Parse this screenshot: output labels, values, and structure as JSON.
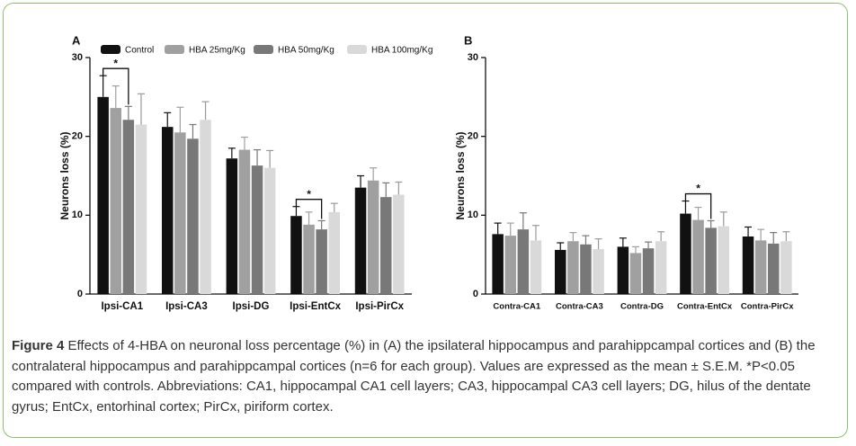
{
  "chart_data": [
    {
      "type": "bar",
      "panel": "A",
      "y_label": "Neurons loss (%)",
      "categories": [
        "Ipsi-CA1",
        "Ipsi-CA3",
        "Ipsi-DG",
        "Ipsi-EntCx",
        "Ipsi-PirCx"
      ],
      "series": [
        {
          "name": "Control",
          "color": "#111111",
          "values": [
            25.0,
            21.2,
            17.2,
            9.9,
            13.5
          ],
          "errors": [
            2.7,
            1.8,
            1.3,
            1.2,
            1.5
          ]
        },
        {
          "name": "HBA 25mg/Kg",
          "color": "#a0a0a0",
          "values": [
            23.6,
            20.5,
            18.3,
            8.8,
            14.4
          ],
          "errors": [
            2.8,
            3.2,
            1.6,
            1.6,
            1.6
          ]
        },
        {
          "name": "HBA 50mg/Kg",
          "color": "#787878",
          "values": [
            22.1,
            19.7,
            16.3,
            8.2,
            12.3
          ],
          "errors": [
            1.7,
            1.8,
            2.0,
            1.1,
            1.8
          ]
        },
        {
          "name": "HBA 100mg/Kg",
          "color": "#d9d9d9",
          "values": [
            21.5,
            22.1,
            16.0,
            10.4,
            12.6
          ],
          "errors": [
            3.9,
            2.3,
            2.2,
            1.1,
            1.6
          ]
        }
      ],
      "ylim": [
        0,
        30
      ],
      "yticks": [
        0,
        10,
        20,
        30
      ],
      "legend": "top",
      "annotations": [
        {
          "text": "*",
          "category": 0,
          "series": [
            0,
            2
          ]
        },
        {
          "text": "*",
          "category": 3,
          "series": [
            0,
            2
          ]
        }
      ]
    },
    {
      "type": "bar",
      "panel": "B",
      "y_label": "Neurons loss (%)",
      "categories": [
        "Contra-CA1",
        "Contra-CA3",
        "Contra-DG",
        "Contra-EntCx",
        "Contra-PirCx"
      ],
      "series": [
        {
          "color": "#111111",
          "values": [
            7.6,
            5.6,
            6.0,
            10.2,
            7.3
          ],
          "errors": [
            1.4,
            0.9,
            1.1,
            1.6,
            1.2
          ]
        },
        {
          "color": "#a0a0a0",
          "values": [
            7.4,
            6.7,
            5.2,
            9.4,
            6.8
          ],
          "errors": [
            1.6,
            1.1,
            0.8,
            1.6,
            1.4
          ]
        },
        {
          "color": "#787878",
          "values": [
            8.2,
            6.3,
            5.8,
            8.4,
            6.4
          ],
          "errors": [
            2.1,
            1.1,
            0.8,
            0.9,
            1.4
          ]
        },
        {
          "color": "#d9d9d9",
          "values": [
            6.8,
            5.7,
            6.7,
            8.6,
            6.7
          ],
          "errors": [
            1.9,
            1.3,
            1.2,
            1.8,
            1.2
          ]
        }
      ],
      "ylim": [
        0,
        30
      ],
      "yticks": [
        0,
        10,
        20,
        30
      ],
      "annotations": [
        {
          "text": "*",
          "category": 3,
          "series": [
            0,
            2
          ]
        }
      ]
    }
  ],
  "caption": {
    "label": "Figure 4",
    "text": "Effects of 4-HBA on neuronal loss percentage (%) in (A) the ipsilateral hippocampus and parahippcampal cortices and (B) the contralateral hippocampus and parahippcampal cortices (n=6 for each group). Values are expressed as the mean ± S.E.M. *P<0.05 compared with controls. Abbreviations: CA1, hippocampal CA1 cell layers; CA3, hippocampal CA3 cell layers; DG, hilus of the dentate gyrus; EntCx, entorhinal cortex; PirCx, piriform cortex."
  }
}
